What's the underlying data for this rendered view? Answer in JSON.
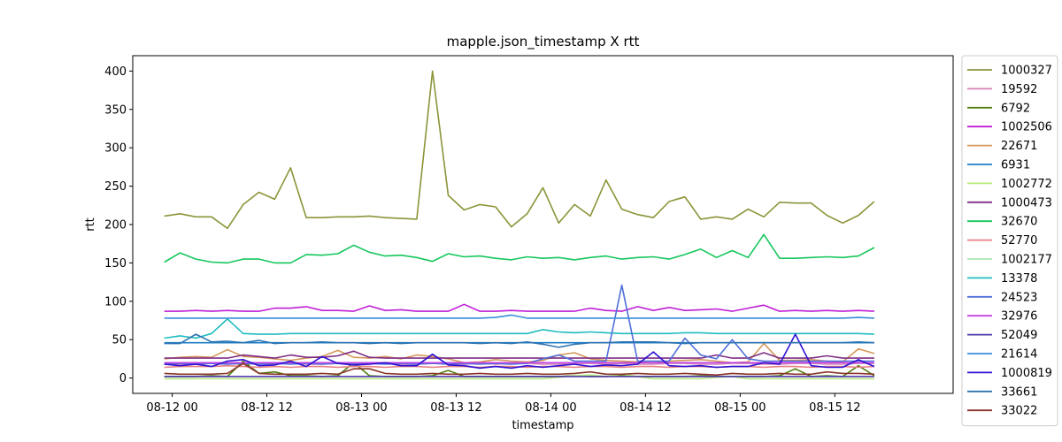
{
  "chart_data": {
    "type": "line",
    "title": "mapple.json_timestamp X rtt",
    "xlabel": "timestamp",
    "ylabel": "rtt",
    "ylim": [
      -20,
      420
    ],
    "yticks": [
      0,
      50,
      100,
      150,
      200,
      250,
      300,
      350,
      400
    ],
    "xlim": [
      "2024-08-11 19:00",
      "2024-08-16 03:00"
    ],
    "xticks": [
      {
        "t": "2024-08-12 00:00",
        "label": "08-12 00"
      },
      {
        "t": "2024-08-12 12:00",
        "label": "08-12 12"
      },
      {
        "t": "2024-08-13 00:00",
        "label": "08-13 00"
      },
      {
        "t": "2024-08-13 12:00",
        "label": "08-13 12"
      },
      {
        "t": "2024-08-14 00:00",
        "label": "08-14 00"
      },
      {
        "t": "2024-08-14 12:00",
        "label": "08-14 12"
      },
      {
        "t": "2024-08-15 00:00",
        "label": "08-15 00"
      },
      {
        "t": "2024-08-15 12:00",
        "label": "08-15 12"
      }
    ],
    "x": [
      "2024-08-11 23:00",
      "2024-08-12 01:00",
      "2024-08-12 03:00",
      "2024-08-12 05:00",
      "2024-08-12 07:00",
      "2024-08-12 09:00",
      "2024-08-12 11:00",
      "2024-08-12 13:00",
      "2024-08-12 15:00",
      "2024-08-12 17:00",
      "2024-08-12 19:00",
      "2024-08-12 21:00",
      "2024-08-12 23:00",
      "2024-08-13 01:00",
      "2024-08-13 03:00",
      "2024-08-13 05:00",
      "2024-08-13 07:00",
      "2024-08-13 09:00",
      "2024-08-13 11:00",
      "2024-08-13 13:00",
      "2024-08-13 15:00",
      "2024-08-13 17:00",
      "2024-08-13 19:00",
      "2024-08-13 21:00",
      "2024-08-13 23:00",
      "2024-08-14 01:00",
      "2024-08-14 03:00",
      "2024-08-14 05:00",
      "2024-08-14 07:00",
      "2024-08-14 09:00",
      "2024-08-14 11:00",
      "2024-08-14 13:00",
      "2024-08-14 15:00",
      "2024-08-14 17:00",
      "2024-08-14 19:00",
      "2024-08-14 21:00",
      "2024-08-14 23:00",
      "2024-08-15 01:00",
      "2024-08-15 03:00",
      "2024-08-15 05:00",
      "2024-08-15 07:00",
      "2024-08-15 09:00",
      "2024-08-15 11:00",
      "2024-08-15 13:00",
      "2024-08-15 15:00",
      "2024-08-15 17:00"
    ],
    "series": [
      {
        "name": "1000327",
        "color": "#8c9438",
        "values": [
          211,
          214,
          210,
          210,
          195,
          226,
          242,
          233,
          274,
          209,
          209,
          210,
          210,
          211,
          209,
          208,
          207,
          400,
          238,
          219,
          226,
          223,
          197,
          214,
          248,
          202,
          226,
          211,
          258,
          220,
          213,
          209,
          230,
          236,
          207,
          210,
          207,
          220,
          210,
          229,
          228,
          228,
          212,
          202,
          212,
          230
        ]
      },
      {
        "name": "19592",
        "color": "#d67fb8",
        "values": [
          18,
          18,
          19,
          19,
          19,
          18,
          19,
          18,
          19,
          18,
          18,
          19,
          18,
          19,
          19,
          18,
          18,
          19,
          19,
          18,
          19,
          18,
          19,
          19,
          18,
          18,
          19,
          19,
          18,
          19,
          18,
          18,
          19,
          19,
          18,
          18,
          19,
          19,
          18,
          18,
          19,
          19,
          18,
          18,
          19,
          19
        ]
      },
      {
        "name": "6792",
        "color": "#4f7f0f",
        "values": [
          2,
          2,
          2,
          3,
          2,
          22,
          6,
          8,
          3,
          3,
          2,
          3,
          20,
          3,
          2,
          2,
          2,
          3,
          10,
          2,
          2,
          2,
          2,
          2,
          2,
          2,
          3,
          2,
          2,
          3,
          2,
          2,
          2,
          2,
          3,
          2,
          2,
          2,
          2,
          3,
          12,
          2,
          3,
          2,
          16,
          3
        ]
      },
      {
        "name": "1002506",
        "color": "#c01fd6",
        "values": [
          87,
          87,
          88,
          87,
          88,
          87,
          87,
          91,
          91,
          93,
          88,
          88,
          87,
          94,
          88,
          89,
          87,
          87,
          87,
          96,
          87,
          87,
          88,
          87,
          87,
          87,
          87,
          91,
          88,
          87,
          93,
          88,
          92,
          88,
          89,
          90,
          87,
          91,
          95,
          87,
          88,
          87,
          88,
          87,
          88,
          87
        ]
      },
      {
        "name": "22671",
        "color": "#d4985a",
        "values": [
          25,
          27,
          28,
          27,
          37,
          28,
          27,
          25,
          23,
          26,
          28,
          36,
          27,
          26,
          28,
          25,
          30,
          28,
          25,
          20,
          21,
          24,
          22,
          21,
          23,
          30,
          33,
          25,
          23,
          22,
          21,
          20,
          22,
          23,
          24,
          22,
          20,
          21,
          45,
          23,
          23,
          24,
          22,
          21,
          38,
          32
        ]
      },
      {
        "name": "6931",
        "color": "#1f7ec4",
        "values": [
          46,
          46,
          46,
          46,
          46,
          46,
          46,
          46,
          46,
          46,
          46,
          46,
          46,
          46,
          46,
          46,
          46,
          46,
          46,
          46,
          46,
          46,
          46,
          46,
          46,
          46,
          46,
          46,
          46,
          46,
          46,
          46,
          46,
          46,
          46,
          46,
          46,
          46,
          46,
          46,
          46,
          46,
          46,
          46,
          46,
          46
        ]
      },
      {
        "name": "1002772",
        "color": "#b6ea7a",
        "values": [
          -1,
          -1,
          -1,
          -1,
          -1,
          -1,
          -1,
          -1,
          -1,
          -1,
          -1,
          -1,
          -1,
          -1,
          -1,
          -1,
          -1,
          -1,
          -1,
          -1,
          -1,
          -1,
          -1,
          -1,
          -1,
          1,
          3,
          4,
          2,
          5,
          2,
          -1,
          -1,
          -1,
          -1,
          1,
          2,
          -1,
          -1,
          -1,
          -1,
          -1,
          -1,
          -1,
          -1,
          -1
        ]
      },
      {
        "name": "1000473",
        "color": "#7f2f84",
        "values": [
          26,
          26,
          26,
          26,
          26,
          30,
          28,
          26,
          30,
          27,
          27,
          29,
          35,
          27,
          26,
          26,
          26,
          26,
          26,
          26,
          26,
          26,
          26,
          26,
          26,
          26,
          26,
          26,
          26,
          26,
          26,
          26,
          26,
          26,
          26,
          30,
          26,
          26,
          33,
          26,
          26,
          26,
          29,
          26,
          26,
          26
        ]
      },
      {
        "name": "32670",
        "color": "#16c75d",
        "values": [
          151,
          163,
          155,
          151,
          150,
          155,
          155,
          150,
          150,
          161,
          160,
          162,
          173,
          164,
          159,
          160,
          157,
          152,
          162,
          158,
          159,
          156,
          154,
          158,
          156,
          157,
          154,
          157,
          159,
          155,
          157,
          158,
          155,
          161,
          168,
          157,
          166,
          157,
          187,
          156,
          156,
          157,
          158,
          157,
          159,
          170
        ]
      },
      {
        "name": "52770",
        "color": "#e87f82",
        "values": [
          14,
          15,
          15,
          15,
          16,
          15,
          14,
          15,
          14,
          15,
          15,
          14,
          15,
          15,
          14,
          15,
          15,
          14,
          15,
          15,
          14,
          15,
          15,
          14,
          15,
          15,
          14,
          15,
          15,
          14,
          15,
          15,
          14,
          15,
          15,
          14,
          15,
          15,
          14,
          15,
          15,
          14,
          15,
          15,
          14,
          15
        ]
      },
      {
        "name": "1002177",
        "color": "#a9e4b1",
        "values": [
          20,
          20,
          20,
          20,
          20,
          20,
          20,
          20,
          20,
          20,
          20,
          20,
          20,
          20,
          20,
          20,
          20,
          20,
          20,
          20,
          20,
          20,
          20,
          20,
          20,
          20,
          20,
          20,
          20,
          20,
          20,
          20,
          20,
          20,
          20,
          20,
          20,
          20,
          20,
          20,
          20,
          20,
          20,
          20,
          20,
          20
        ]
      },
      {
        "name": "13378",
        "color": "#1fbcc0",
        "values": [
          52,
          55,
          52,
          58,
          77,
          58,
          57,
          57,
          58,
          58,
          58,
          58,
          58,
          58,
          58,
          58,
          58,
          58,
          58,
          58,
          58,
          58,
          58,
          58,
          63,
          60,
          59,
          60,
          59,
          58,
          58,
          58,
          58,
          59,
          59,
          58,
          58,
          58,
          58,
          58,
          58,
          58,
          58,
          58,
          58,
          57
        ]
      },
      {
        "name": "24523",
        "color": "#4f6fd9",
        "values": [
          18,
          19,
          18,
          19,
          18,
          19,
          18,
          19,
          18,
          19,
          18,
          19,
          18,
          19,
          18,
          19,
          18,
          19,
          18,
          19,
          18,
          19,
          18,
          19,
          25,
          30,
          22,
          22,
          22,
          121,
          22,
          22,
          22,
          52,
          30,
          25,
          50,
          25,
          22,
          22,
          22,
          22,
          22,
          22,
          22,
          22
        ]
      },
      {
        "name": "32976",
        "color": "#c640e8",
        "values": [
          20,
          20,
          20,
          20,
          20,
          20,
          20,
          20,
          20,
          20,
          20,
          20,
          20,
          20,
          20,
          20,
          20,
          20,
          20,
          20,
          20,
          20,
          20,
          20,
          20,
          20,
          20,
          20,
          20,
          20,
          20,
          20,
          20,
          20,
          20,
          20,
          20,
          20,
          20,
          20,
          20,
          20,
          20,
          20,
          20,
          20
        ]
      },
      {
        "name": "52049",
        "color": "#4c38a8",
        "values": [
          2,
          2,
          2,
          2,
          2,
          2,
          2,
          2,
          2,
          2,
          2,
          2,
          2,
          2,
          2,
          2,
          2,
          2,
          2,
          2,
          2,
          2,
          2,
          2,
          2,
          2,
          2,
          2,
          2,
          2,
          2,
          2,
          2,
          2,
          2,
          2,
          2,
          2,
          2,
          2,
          2,
          2,
          2,
          2,
          2,
          2
        ]
      },
      {
        "name": "21614",
        "color": "#3a8ddb",
        "values": [
          78,
          78,
          78,
          78,
          78,
          78,
          78,
          78,
          78,
          78,
          78,
          78,
          78,
          78,
          78,
          78,
          78,
          78,
          78,
          78,
          78,
          79,
          82,
          78,
          78,
          78,
          78,
          78,
          78,
          78,
          78,
          78,
          78,
          78,
          78,
          78,
          78,
          78,
          78,
          78,
          78,
          78,
          78,
          78,
          79,
          78
        ]
      },
      {
        "name": "1000819",
        "color": "#2c10d3",
        "values": [
          18,
          16,
          18,
          15,
          22,
          24,
          16,
          17,
          22,
          15,
          28,
          19,
          17,
          18,
          20,
          16,
          16,
          31,
          17,
          16,
          13,
          15,
          13,
          16,
          14,
          16,
          18,
          15,
          17,
          16,
          18,
          34,
          16,
          15,
          16,
          14,
          15,
          15,
          20,
          18,
          57,
          16,
          14,
          14,
          24,
          15
        ]
      },
      {
        "name": "33661",
        "color": "#2d73b0",
        "values": [
          45,
          45,
          57,
          47,
          48,
          46,
          49,
          45,
          46,
          46,
          47,
          46,
          46,
          45,
          46,
          45,
          46,
          46,
          46,
          46,
          45,
          46,
          45,
          47,
          44,
          40,
          44,
          46,
          46,
          47,
          47,
          47,
          46,
          45,
          46,
          46,
          46,
          46,
          46,
          46,
          46,
          46,
          46,
          46,
          47,
          46
        ]
      },
      {
        "name": "33022",
        "color": "#8a3428",
        "values": [
          6,
          5,
          5,
          5,
          6,
          19,
          6,
          5,
          5,
          5,
          6,
          5,
          12,
          12,
          6,
          5,
          5,
          6,
          5,
          5,
          6,
          5,
          5,
          6,
          5,
          5,
          6,
          8,
          5,
          5,
          6,
          5,
          5,
          6,
          5,
          4,
          6,
          5,
          5,
          6,
          5,
          5,
          8,
          6,
          6,
          5
        ]
      }
    ],
    "legend_position": "right-outside",
    "grid": false
  }
}
